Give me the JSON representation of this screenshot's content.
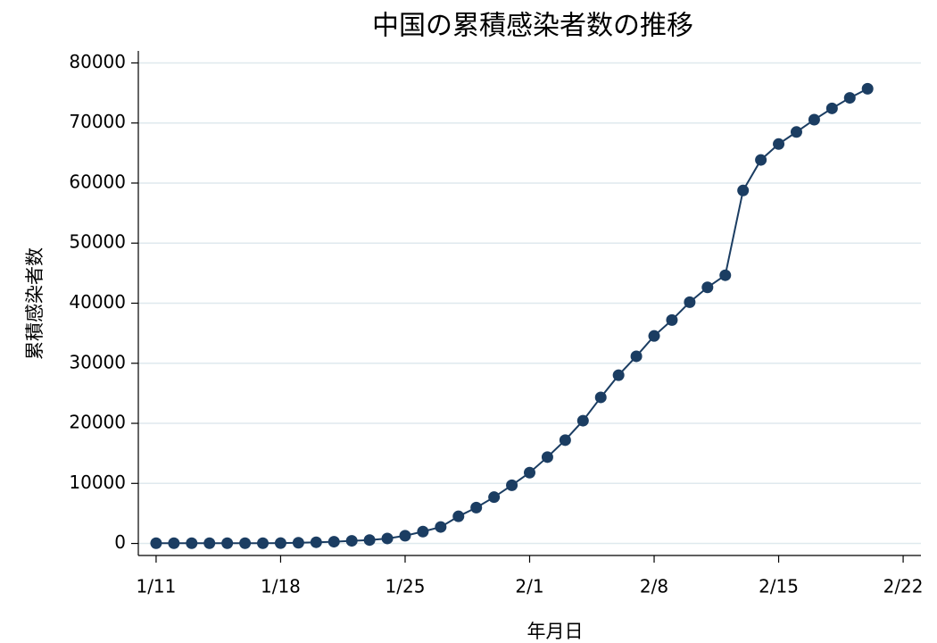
{
  "chart_data": {
    "type": "line",
    "title": "中国の累積感染者数の推移",
    "x_label": "年月日",
    "y_label": "累積感染者数",
    "x": [
      "1/11",
      "1/12",
      "1/13",
      "1/14",
      "1/15",
      "1/16",
      "1/17",
      "1/18",
      "1/19",
      "1/20",
      "1/21",
      "1/22",
      "1/23",
      "1/24",
      "1/25",
      "1/26",
      "1/27",
      "1/28",
      "1/29",
      "1/30",
      "1/31",
      "2/1",
      "2/2",
      "2/3",
      "2/4",
      "2/5",
      "2/6",
      "2/7",
      "2/8",
      "2/9",
      "2/10",
      "2/11",
      "2/12",
      "2/13",
      "2/14",
      "2/15",
      "2/16",
      "2/17",
      "2/18",
      "2/19",
      "2/20"
    ],
    "series": [
      {
        "color": "#1b3d62",
        "values": [
          41,
          41,
          41,
          41,
          41,
          41,
          45,
          62,
          121,
          198,
          291,
          440,
          571,
          830,
          1287,
          1975,
          2744,
          4515,
          5974,
          7711,
          9692,
          11791,
          14380,
          17205,
          20438,
          24324,
          28018,
          31161,
          34546,
          37198,
          40171,
          42638,
          44653,
          58761,
          63851,
          66492,
          68500,
          70548,
          72436,
          74185,
          75700
        ]
      }
    ],
    "xlim": [
      "1/10",
      "2/23"
    ],
    "xticks": [
      "1/11",
      "1/18",
      "1/25",
      "2/1",
      "2/8",
      "2/15",
      "2/22"
    ],
    "ylim": [
      -2000,
      82000
    ],
    "yticks": [
      0,
      10000,
      20000,
      30000,
      40000,
      50000,
      60000,
      70000,
      80000
    ],
    "grid": true,
    "grid_color": "#dfe9ee"
  }
}
